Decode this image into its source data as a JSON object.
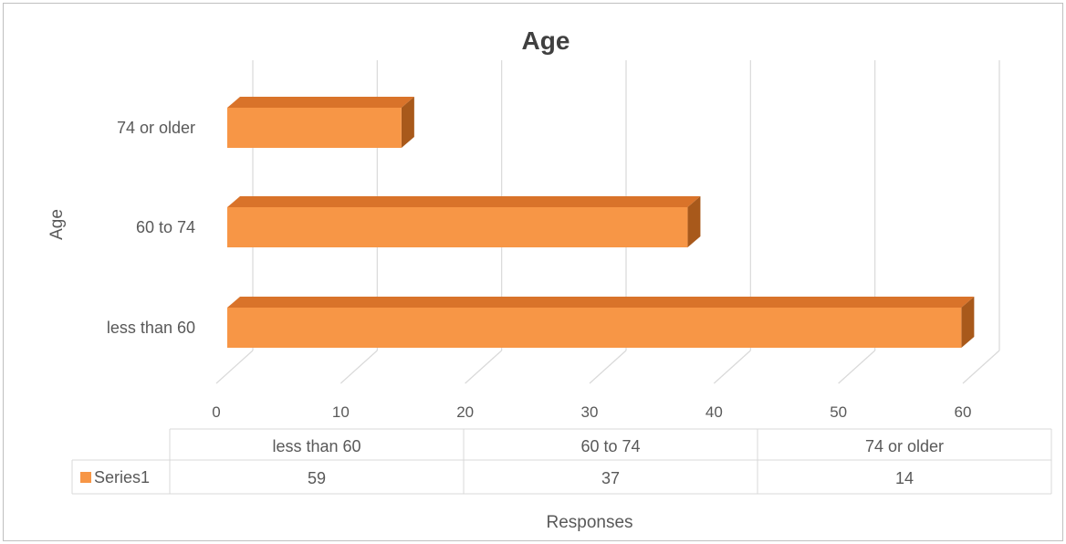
{
  "chart_data": {
    "type": "bar",
    "orientation": "horizontal",
    "style": "3d",
    "title": "Age",
    "xlabel": "Responses",
    "ylabel": "Age",
    "categories": [
      "less than 60",
      "60 to 74",
      "74 or older"
    ],
    "series": [
      {
        "name": "Series1",
        "values": [
          59,
          37,
          14
        ],
        "color": "#F79646"
      }
    ],
    "xlim": [
      0,
      60
    ],
    "xticks": [
      "0",
      "10",
      "20",
      "30",
      "40",
      "50",
      "60"
    ],
    "grid": true,
    "legend": "data-table",
    "data_table": {
      "headers": [
        "less than 60",
        "60 to 74",
        "74 or older"
      ],
      "row_label": "Series1",
      "row_values": [
        "59",
        "37",
        "14"
      ]
    }
  },
  "colors": {
    "bar_front": "#F79646",
    "bar_top": "#D9732A",
    "bar_side": "#A8591B",
    "grid": "#d9d9d9",
    "border": "#bfbfbf"
  }
}
